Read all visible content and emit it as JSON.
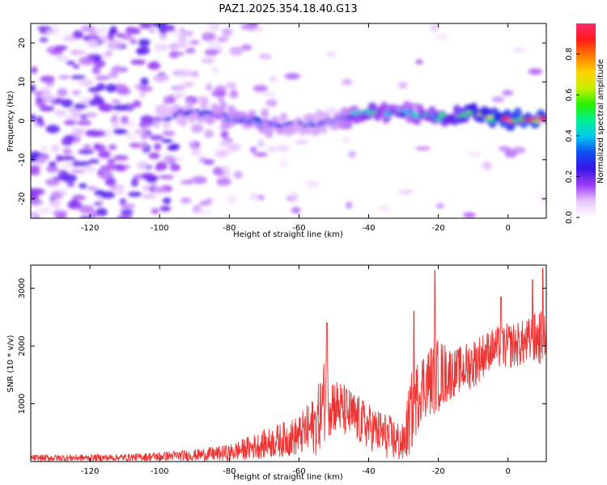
{
  "figure_title": "PAZ1.2025.354.18.40.G13",
  "chart_data": [
    {
      "type": "heatmap",
      "title": "PAZ1.2025.354.18.40.G13",
      "xlabel": "Height of straight line (km)",
      "ylabel": "Frequency (Hz)",
      "xlim": [
        -137,
        11
      ],
      "ylim": [
        -25,
        25
      ],
      "xticks": [
        -120,
        -100,
        -80,
        -60,
        -40,
        -20,
        0
      ],
      "yticks": [
        -20,
        -10,
        0,
        10,
        20
      ],
      "colorbar": {
        "label": "Normalized spectral amplitude",
        "range": [
          0,
          0.95
        ],
        "ticks": [
          0.0,
          0.2,
          0.4,
          0.6,
          0.8
        ],
        "tick_labels": [
          "0.0",
          "0.2",
          "0.4",
          "0.6",
          "0.8"
        ],
        "colors": [
          "#ffffff",
          "#e9c8ff",
          "#9d3df5",
          "#3a14e8",
          "#0e4df0",
          "#00c8f0",
          "#00f090",
          "#26f000",
          "#c8f000",
          "#ffd000",
          "#ff7a00",
          "#ff1a1a",
          "#ff2a6a"
        ]
      },
      "ridge": {
        "description_points_x": [
          -100,
          -90,
          -80,
          -70,
          -60,
          -50,
          -40,
          -30,
          -20,
          -10,
          0,
          10
        ],
        "frequency_hz": [
          0.8,
          2.5,
          1.0,
          -0.5,
          -1.0,
          0.0,
          2.5,
          2.0,
          1.0,
          2.0,
          0.0,
          0.5
        ],
        "amplitude": [
          0.25,
          0.3,
          0.35,
          0.35,
          0.3,
          0.3,
          0.55,
          0.4,
          0.55,
          0.7,
          0.85,
          0.9
        ]
      }
    },
    {
      "type": "line",
      "title": "",
      "xlabel": "Height of straight line (km)",
      "ylabel": "SNR (10 * v/v)",
      "xlim": [
        -137,
        11
      ],
      "ylim": [
        0,
        3400
      ],
      "xticks": [
        -120,
        -100,
        -80,
        -60,
        -40,
        -20,
        0
      ],
      "yticks": [
        1000,
        2000,
        3000
      ],
      "color": "#ee3333",
      "envelope_x": [
        -137,
        -110,
        -100,
        -90,
        -80,
        -70,
        -60,
        -55,
        -52,
        -50,
        -45,
        -40,
        -35,
        -30,
        -28,
        -25,
        -20,
        -15,
        -10,
        -5,
        0,
        5,
        9,
        11
      ],
      "envelope_y": [
        60,
        70,
        90,
        110,
        150,
        300,
        450,
        650,
        1200,
        1000,
        800,
        600,
        450,
        300,
        800,
        1300,
        1500,
        1550,
        1700,
        1950,
        2000,
        2050,
        2150,
        2150
      ],
      "noise_amplitude": [
        60,
        60,
        80,
        100,
        150,
        250,
        350,
        550,
        800,
        500,
        450,
        400,
        400,
        350,
        700,
        600,
        650,
        400,
        450,
        350,
        400,
        400,
        500,
        350
      ],
      "peaks": [
        {
          "x": -52,
          "y": 2400
        },
        {
          "x": -27,
          "y": 2600
        },
        {
          "x": -21,
          "y": 3300
        },
        {
          "x": -2,
          "y": 2850
        },
        {
          "x": 7,
          "y": 3150
        },
        {
          "x": 10,
          "y": 3350
        }
      ]
    }
  ]
}
